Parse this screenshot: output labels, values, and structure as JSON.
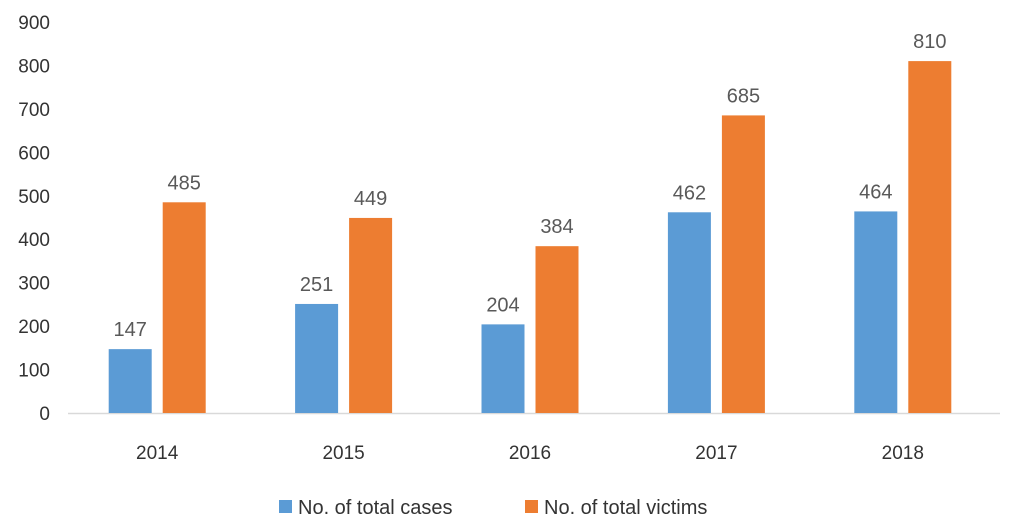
{
  "chart_data": {
    "type": "bar",
    "title": "",
    "xlabel": "",
    "ylabel": "",
    "categories": [
      "2014",
      "2015",
      "2016",
      "2017",
      "2018"
    ],
    "series": [
      {
        "name": "No. of total cases",
        "color": "#5B9BD5",
        "values": [
          147,
          251,
          204,
          462,
          464
        ]
      },
      {
        "name": "No. of total victims",
        "color": "#ED7D31",
        "values": [
          485,
          449,
          384,
          685,
          810
        ]
      }
    ],
    "ylim": [
      0,
      900
    ],
    "yticks": [
      0,
      100,
      200,
      300,
      400,
      500,
      600,
      700,
      800,
      900
    ],
    "grid": false,
    "data_labels": true,
    "legend_position": "bottom"
  }
}
